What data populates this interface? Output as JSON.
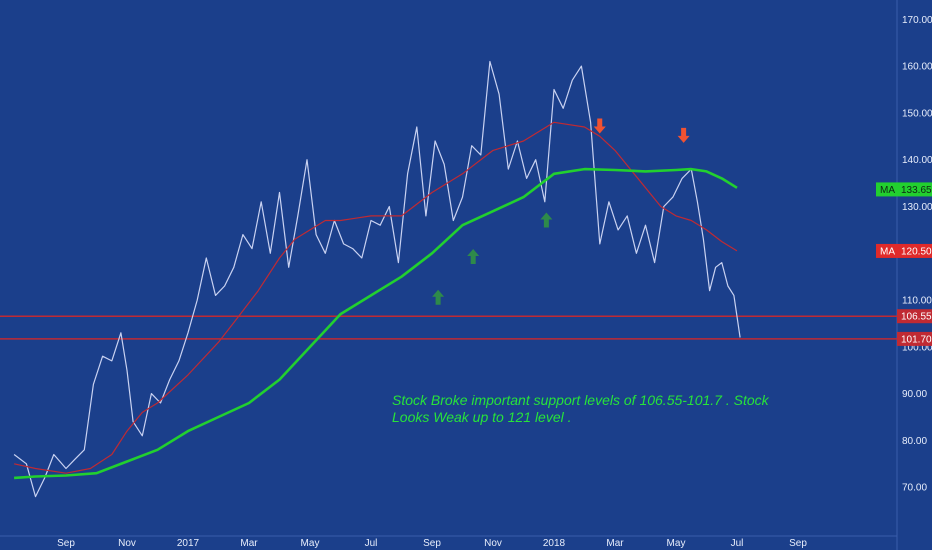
{
  "chart_data": {
    "type": "line",
    "title": "",
    "xlabel": "",
    "ylabel": "",
    "ylim": [
      60,
      172
    ],
    "y_ticks": [
      70,
      80,
      90,
      100,
      110,
      120,
      130,
      140,
      150,
      160,
      170
    ],
    "y_tick_labels": [
      "70.00",
      "80.00",
      "90.00",
      "100.00",
      "110.00",
      "120.00",
      "130.00",
      "140.00",
      "150.00",
      "160.00",
      "170.00"
    ],
    "x_ticks": [
      {
        "label": "Sep",
        "x": 2
      },
      {
        "label": "Nov",
        "x": 4
      },
      {
        "label": "2017",
        "x": 6
      },
      {
        "label": "Mar",
        "x": 8
      },
      {
        "label": "May",
        "x": 10
      },
      {
        "label": "Jul",
        "x": 12
      },
      {
        "label": "Sep",
        "x": 14
      },
      {
        "label": "Nov",
        "x": 16
      },
      {
        "label": "2018",
        "x": 18
      },
      {
        "label": "Mar",
        "x": 20
      },
      {
        "label": "May",
        "x": 22
      },
      {
        "label": "Jul",
        "x": 24
      },
      {
        "label": "Sep",
        "x": 26
      }
    ],
    "xlim": [
      0.3,
      27.3
    ],
    "x_unit": "month index (Sep = 2)",
    "grid": false,
    "series": [
      {
        "color": "#c9d2f2",
        "x": [
          0.3,
          0.7,
          1.0,
          1.3,
          1.6,
          2.0,
          2.3,
          2.6,
          2.9,
          3.2,
          3.5,
          3.8,
          4.0,
          4.2,
          4.5,
          4.8,
          5.1,
          5.4,
          5.7,
          6.0,
          6.3,
          6.6,
          6.9,
          7.2,
          7.5,
          7.8,
          8.1,
          8.4,
          8.7,
          9.0,
          9.3,
          9.6,
          9.9,
          10.2,
          10.5,
          10.8,
          11.1,
          11.4,
          11.7,
          12.0,
          12.3,
          12.6,
          12.9,
          13.2,
          13.5,
          13.8,
          14.1,
          14.4,
          14.7,
          15.0,
          15.3,
          15.6,
          15.9,
          16.2,
          16.5,
          16.8,
          17.1,
          17.4,
          17.7,
          18.0,
          18.3,
          18.6,
          18.9,
          19.2,
          19.5,
          19.8,
          20.1,
          20.4,
          20.7,
          21.0,
          21.3,
          21.6,
          21.9,
          22.2,
          22.5,
          22.7,
          22.9,
          23.1,
          23.3,
          23.5,
          23.7,
          23.9,
          24.1
        ],
        "y": [
          77,
          75,
          68,
          72,
          77,
          74,
          76,
          78,
          92,
          98,
          97,
          103,
          95,
          84,
          81,
          90,
          88,
          93,
          97,
          103,
          110,
          119,
          111,
          113,
          117,
          124,
          121,
          131,
          120,
          133,
          117,
          128,
          140,
          124,
          120,
          127,
          122,
          121,
          119,
          127,
          126,
          130,
          118,
          137,
          147,
          128,
          144,
          139,
          127,
          132,
          143,
          141,
          161,
          154,
          138,
          144,
          136,
          140,
          131,
          155,
          151,
          157,
          160,
          148,
          122,
          131,
          125,
          128,
          120,
          126,
          118,
          130,
          132,
          136,
          138,
          131,
          123,
          112,
          117,
          118,
          113,
          111,
          102
        ]
      },
      {
        "color": "#c02a33",
        "x": [
          0.3,
          1.0,
          2.0,
          2.8,
          3.5,
          4.0,
          4.5,
          5.0,
          6.0,
          7.0,
          7.6,
          8.3,
          9.0,
          9.5,
          10.0,
          10.5,
          11.0,
          11.5,
          12.0,
          13.0,
          14.0,
          15.0,
          16.0,
          17.0,
          18.0,
          19.0,
          19.5,
          20.0,
          20.5,
          21.0,
          21.5,
          22.0,
          22.5,
          23.0,
          23.5,
          24.0
        ],
        "y": [
          75,
          74,
          73,
          74,
          77,
          82,
          86,
          88,
          94,
          101,
          106,
          112,
          119,
          123,
          125,
          127,
          127,
          127.5,
          128,
          128,
          133,
          137,
          142,
          144,
          148,
          147,
          145,
          142,
          138,
          134,
          130,
          128,
          127,
          125,
          122.5,
          120.5
        ]
      },
      {
        "color": "#22d02f",
        "x": [
          0.3,
          1.0,
          2.0,
          3.0,
          4.0,
          5.0,
          6.0,
          7.0,
          8.0,
          9.0,
          10.0,
          10.5,
          11.0,
          12.0,
          13.0,
          14.0,
          15.0,
          16.0,
          17.0,
          18.0,
          19.0,
          20.0,
          21.0,
          22.0,
          22.5,
          23.0,
          23.5,
          24.0
        ],
        "y": [
          72,
          72.3,
          72.5,
          73,
          75.5,
          78,
          82,
          85,
          88,
          93,
          100,
          103.5,
          107,
          111,
          115,
          120,
          126,
          129,
          132,
          137,
          138,
          137.8,
          137.5,
          137.8,
          138,
          137.5,
          136,
          134
        ]
      }
    ],
    "horizontal_lines": [
      {
        "value": 106.55,
        "label": "106.55",
        "color": "#c02a33"
      },
      {
        "value": 101.7,
        "label": "101.70",
        "color": "#c02a33"
      }
    ],
    "ma_labels": [
      {
        "text": "MA",
        "value_label": "133.65",
        "value": 133.65,
        "color": "#22d02f"
      },
      {
        "text": "MA",
        "value_label": "120.50",
        "value": 120.5,
        "color": "#e02a2a"
      }
    ],
    "markers": [
      {
        "kind": "up",
        "x": 14.2,
        "y": 110.5,
        "color": "#2e8a4a"
      },
      {
        "kind": "up",
        "x": 15.35,
        "y": 119.2,
        "color": "#2e8a4a"
      },
      {
        "kind": "up",
        "x": 17.75,
        "y": 127.0,
        "color": "#2e8a4a"
      },
      {
        "kind": "down",
        "x": 19.5,
        "y": 147.3,
        "color": "#f05232"
      },
      {
        "kind": "down",
        "x": 22.25,
        "y": 145.3,
        "color": "#f05232"
      }
    ],
    "annotation": "Stock Broke important support levels of 106.55-101.7 . Stock Looks Weak up to 121 level ."
  }
}
